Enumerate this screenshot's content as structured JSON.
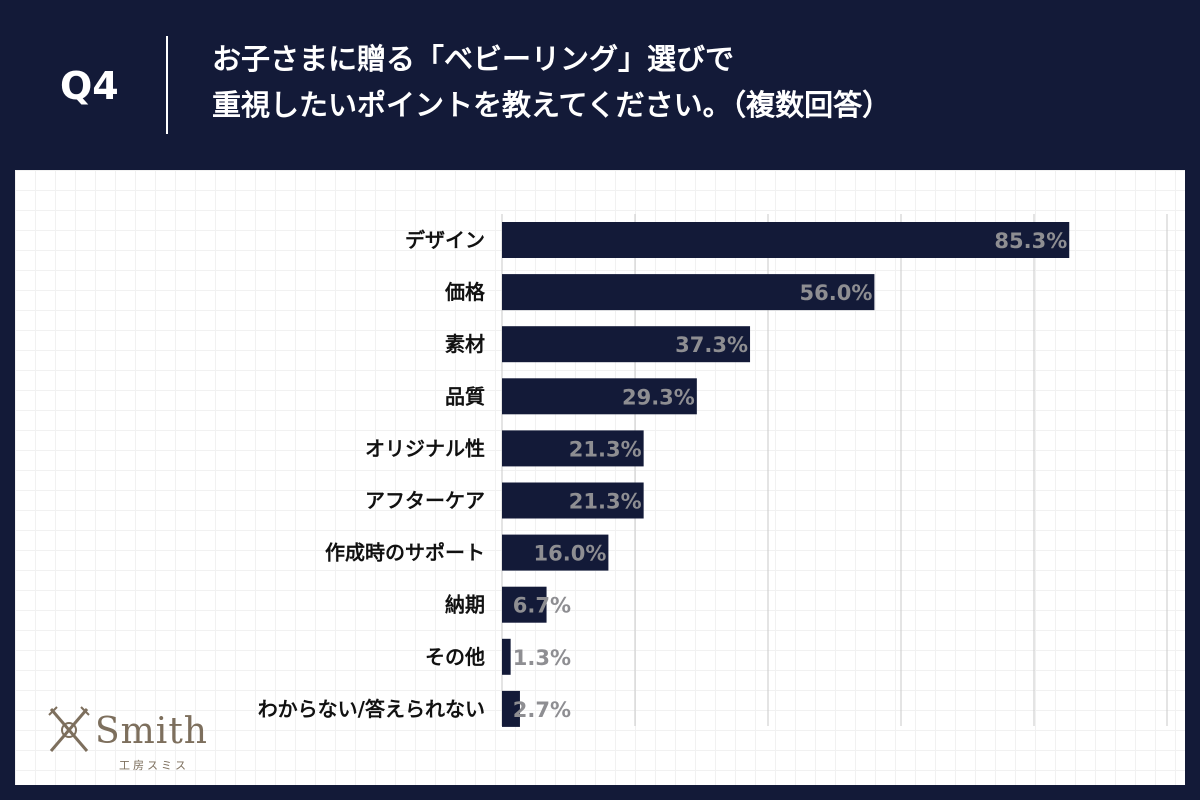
{
  "header": {
    "question_label": "Q4",
    "title_line1": "お子さまに贈る「ベビーリング」選びで",
    "title_line2": "重視したいポイントを教えてください。（複数回答）"
  },
  "colors": {
    "background": "#131a38",
    "bar": "#131a38",
    "value_label": "#8e8e92",
    "panel": "#ffffff"
  },
  "chart_data": {
    "type": "bar",
    "orientation": "horizontal",
    "categories": [
      "デザイン",
      "価格",
      "素材",
      "品質",
      "オリジナル性",
      "アフターケア",
      "作成時のサポート",
      "納期",
      "その他",
      "わからない/答えられない"
    ],
    "values": [
      85.3,
      56.0,
      37.3,
      29.3,
      21.3,
      21.3,
      16.0,
      6.7,
      1.3,
      2.7
    ],
    "value_labels": [
      "85.3%",
      "56.0%",
      "37.3%",
      "29.3%",
      "21.3%",
      "21.3%",
      "16.0%",
      "6.7%",
      "1.3%",
      "2.7%"
    ],
    "xlim": [
      0,
      100
    ],
    "gridlines": [
      0,
      20,
      40,
      60,
      80,
      100
    ],
    "unit": "%",
    "xlabel": "",
    "ylabel": "",
    "legend": "none"
  },
  "logo": {
    "name": "Smith",
    "subtitle": "工房スミス",
    "icon": "crossed-swords-ring-icon"
  }
}
